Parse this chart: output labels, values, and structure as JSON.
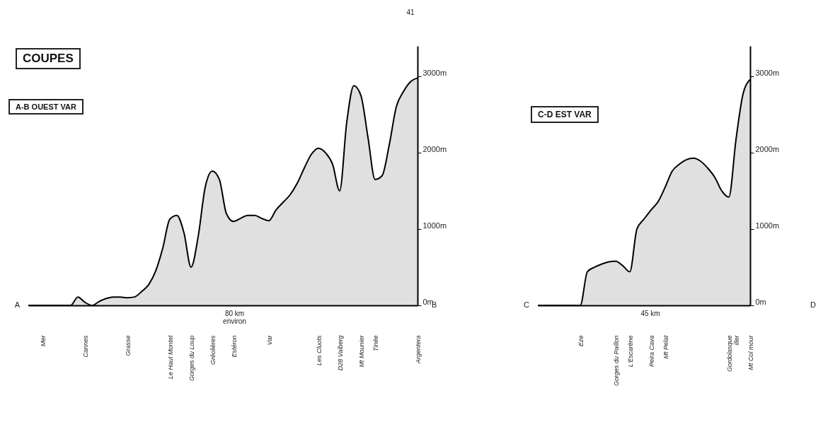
{
  "chart_data": [
    {
      "type": "area",
      "title": "COUPES",
      "subtitle": "A-B OUEST VAR",
      "categories": [
        null,
        null,
        "Mer",
        null,
        null,
        null,
        null,
        null,
        "Cannes",
        null,
        null,
        null,
        null,
        null,
        "Grasse",
        null,
        null,
        null,
        null,
        null,
        "Le Haut Montet",
        null,
        null,
        "Gorges du Loup",
        null,
        null,
        "Gréolières",
        null,
        null,
        "Estéron",
        null,
        null,
        null,
        null,
        "Var",
        null,
        null,
        null,
        null,
        null,
        null,
        "Les Cluots",
        null,
        null,
        "D28 Valberg",
        null,
        null,
        "Mt Mounier",
        null,
        "Tinée",
        null,
        null,
        null,
        null,
        null,
        "Argentera"
      ],
      "series": [
        {
          "color": "#000000",
          "values": [
            0,
            0,
            0,
            0,
            0,
            0,
            0,
            110,
            40,
            0,
            50,
            90,
            110,
            110,
            100,
            110,
            180,
            270,
            450,
            750,
            1130,
            1180,
            950,
            500,
            900,
            1550,
            1760,
            1650,
            1200,
            1100,
            1140,
            1180,
            1180,
            1140,
            1110,
            1250,
            1350,
            1450,
            1600,
            1800,
            1980,
            2060,
            2000,
            1850,
            1500,
            2400,
            2880,
            2750,
            2200,
            1650,
            1700,
            2100,
            2600,
            2800,
            2930,
            2980
          ]
        }
      ],
      "ylim": [
        0,
        3400
      ],
      "yticks": [
        {
          "value": 0,
          "label": "0m"
        },
        {
          "value": 1000,
          "label": "1000m"
        },
        {
          "value": 2000,
          "label": "2000m"
        },
        {
          "value": 3000,
          "label": "3000m"
        }
      ],
      "annotations": [
        "A",
        "B",
        "80 km environ",
        "41"
      ]
    },
    {
      "type": "area",
      "title": "C-D EST VAR",
      "categories": [
        null,
        null,
        null,
        null,
        null,
        null,
        "Eze",
        null,
        null,
        null,
        null,
        "Gorges du Paillon",
        null,
        "L'Escarène",
        null,
        null,
        "Peira Cava",
        null,
        "Mt Pelat",
        null,
        null,
        null,
        null,
        null,
        null,
        null,
        null,
        "Gordolasque",
        "iller",
        null,
        "Mt Col mour"
      ],
      "series": [
        {
          "color": "#000000",
          "values": [
            0,
            0,
            0,
            0,
            0,
            0,
            0,
            440,
            500,
            540,
            570,
            580,
            520,
            440,
            1000,
            1130,
            1250,
            1360,
            1550,
            1760,
            1850,
            1910,
            1930,
            1890,
            1800,
            1680,
            1500,
            1420,
            2170,
            2770,
            2960
          ]
        }
      ],
      "ylim": [
        0,
        3400
      ],
      "yticks": [
        {
          "value": 0,
          "label": "0m"
        },
        {
          "value": 1000,
          "label": "1000m"
        },
        {
          "value": 2000,
          "label": "2000m"
        },
        {
          "value": 3000,
          "label": "3000m"
        }
      ],
      "annotations": [
        "C",
        "D",
        "45 km"
      ]
    }
  ]
}
